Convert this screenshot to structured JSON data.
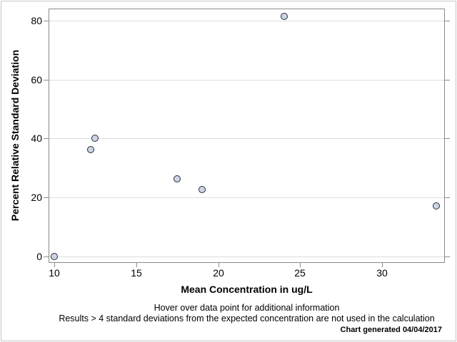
{
  "chart_data": {
    "type": "scatter",
    "xlabel": "Mean Concentration in ug/L",
    "ylabel": "Percent Relative Standard Deviation",
    "xlim": [
      9.65,
      33.82
    ],
    "ylim": [
      -2.2,
      84.1
    ],
    "x_ticks": [
      10,
      15,
      20,
      25,
      30
    ],
    "y_ticks": [
      0,
      20,
      40,
      60,
      80
    ],
    "grid": "horizontal-only",
    "legend": "none",
    "points": [
      {
        "x": 10.0,
        "y": 0.0
      },
      {
        "x": 12.2,
        "y": 36.2
      },
      {
        "x": 12.5,
        "y": 40.0
      },
      {
        "x": 17.5,
        "y": 26.3
      },
      {
        "x": 19.0,
        "y": 22.8
      },
      {
        "x": 24.0,
        "y": 81.4
      },
      {
        "x": 33.3,
        "y": 17.2
      }
    ],
    "marker": {
      "shape": "circle",
      "fill": "#cdd5e4",
      "stroke": "#242a3a"
    },
    "colors": {
      "axis": "#8a8a8a",
      "grid": "#dedede",
      "text": "#000000",
      "canvas_border": "#c6c6c6"
    }
  },
  "footnotes": {
    "line1": "Hover over data point for additional information",
    "line2": "Results > 4 standard deviations from the expected concentration are not used in the calculation",
    "generated": "Chart generated 04/04/2017"
  }
}
